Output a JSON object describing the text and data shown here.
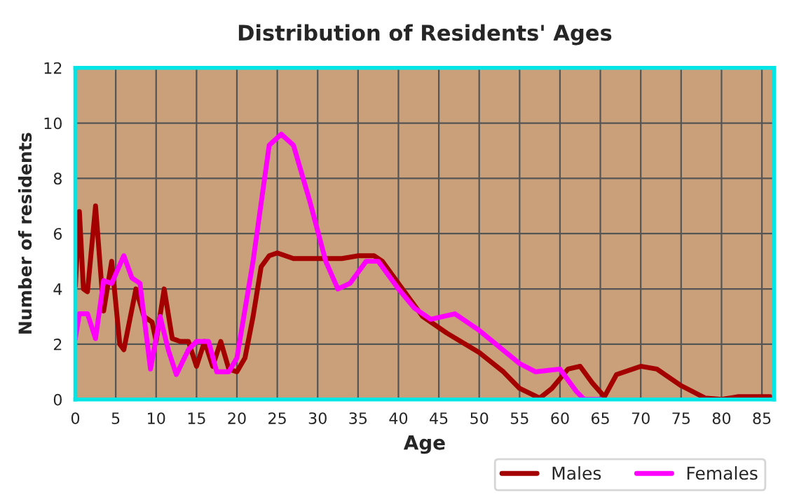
{
  "chart_data": {
    "type": "line",
    "title": "Distribution of Residents' Ages",
    "xlabel": "Age",
    "ylabel": "Number of residents",
    "xlim": [
      0,
      86.5
    ],
    "xticks": [
      0,
      5,
      10,
      15,
      20,
      25,
      30,
      35,
      40,
      45,
      50,
      55,
      60,
      65,
      70,
      75,
      80,
      85
    ],
    "ylim": [
      0,
      12
    ],
    "yticks": [
      0,
      2,
      4,
      6,
      8,
      10,
      12
    ],
    "grid": true,
    "legend": "bottom right",
    "marker": "none",
    "line_style": "solid",
    "series": [
      {
        "name": "Males",
        "color": "#a50000",
        "x": [
          0,
          0.5,
          1,
          1.5,
          2.5,
          3.5,
          4.5,
          5.5,
          6,
          7.5,
          8.5,
          9.5,
          10,
          11,
          12,
          13,
          14,
          15,
          16,
          17,
          18,
          19,
          20,
          21,
          22,
          23,
          24,
          25,
          27,
          30,
          33,
          35,
          37,
          38,
          40,
          43,
          46,
          50,
          53,
          55,
          57.5,
          59,
          61,
          62.5,
          64,
          65.5,
          67,
          70,
          72,
          75,
          78,
          80,
          82,
          86
        ],
        "values": [
          4.1,
          6.8,
          4,
          3.9,
          7,
          3.2,
          5,
          2,
          1.8,
          4,
          3,
          2.8,
          2.1,
          4,
          2.2,
          2.1,
          2.1,
          1.2,
          2.1,
          1.2,
          2.1,
          1.1,
          1,
          1.5,
          3,
          4.8,
          5.2,
          5.3,
          5.1,
          5.1,
          5.1,
          5.2,
          5.2,
          5,
          4.2,
          3,
          2.4,
          1.7,
          1,
          0.4,
          0.05,
          0.4,
          1.1,
          1.2,
          0.6,
          0.1,
          0.9,
          1.2,
          1.1,
          0.5,
          0.05,
          0,
          0.1,
          0.1
        ]
      },
      {
        "name": "Females",
        "color": "#ff00ff",
        "x": [
          0,
          0.5,
          1.5,
          2.5,
          3.5,
          4.5,
          6,
          7,
          8,
          9.3,
          10.5,
          11.5,
          12.5,
          14,
          15,
          16.5,
          17.5,
          19,
          20,
          22,
          24,
          25.5,
          27,
          29,
          31,
          32.5,
          34,
          36,
          37.5,
          40,
          42,
          44,
          47,
          50,
          55,
          57,
          60,
          62,
          63,
          65
        ],
        "values": [
          2.2,
          3.1,
          3.1,
          2.2,
          4.3,
          4.2,
          5.2,
          4.4,
          4.2,
          1.1,
          3,
          1.8,
          0.9,
          1.8,
          2.1,
          2.1,
          1,
          1,
          1.5,
          5,
          9.2,
          9.6,
          9.2,
          7.2,
          5,
          4,
          4.2,
          5,
          5,
          4,
          3.3,
          2.9,
          3.1,
          2.5,
          1.3,
          1,
          1.1,
          0.3,
          0,
          0
        ]
      }
    ]
  }
}
